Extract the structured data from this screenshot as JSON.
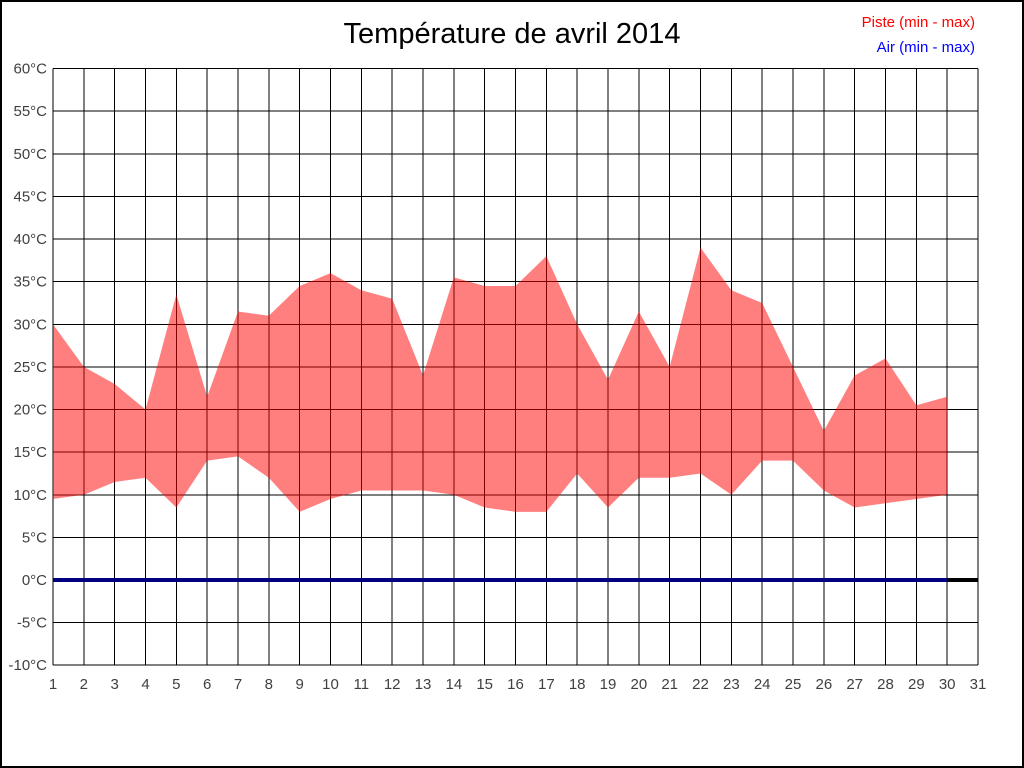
{
  "header": {
    "title": "Température de avril 2014"
  },
  "legend": {
    "piste": {
      "label": "Piste (min - max)",
      "text_color": "#ff0000"
    },
    "air": {
      "label": "Air (min - max)",
      "text_color": "#0000ff"
    }
  },
  "chart_data": {
    "type": "area",
    "title": "Température de avril 2014",
    "xlabel": "",
    "ylabel": "",
    "grid": true,
    "grid_color": "#000000",
    "axis_text_color": "#404040",
    "legend_position": "top-right",
    "ylim": [
      -10,
      60
    ],
    "ytick_values": [
      60,
      55,
      50,
      45,
      40,
      35,
      30,
      25,
      20,
      15,
      10,
      5,
      0,
      -5,
      -10
    ],
    "ytick_labels": [
      "60°C",
      "55°C",
      "50°C",
      "45°C",
      "40°C",
      "35°C",
      "30°C",
      "25°C",
      "20°C",
      "15°C",
      "10°C",
      "5°C",
      "0°C",
      "-5°C",
      "-10°C"
    ],
    "xtick_days": [
      1,
      2,
      3,
      4,
      5,
      6,
      7,
      8,
      9,
      10,
      11,
      12,
      13,
      14,
      15,
      16,
      17,
      18,
      19,
      20,
      21,
      22,
      23,
      24,
      25,
      26,
      27,
      28,
      29,
      30,
      31
    ],
    "xtick_labels": [
      "1",
      "2",
      "3",
      "4",
      "5",
      "6",
      "7",
      "8",
      "9",
      "10",
      "11",
      "12",
      "13",
      "14",
      "15",
      "16",
      "17",
      "18",
      "19",
      "20",
      "21",
      "22",
      "23",
      "24",
      "25",
      "26",
      "27",
      "28",
      "29",
      "30",
      "31"
    ],
    "series": [
      {
        "name": "Piste (min - max)",
        "kind": "band",
        "fill_color": "#ff0000",
        "fill_opacity": 0.5,
        "days": [
          1,
          2,
          3,
          4,
          5,
          6,
          7,
          8,
          9,
          10,
          11,
          12,
          13,
          14,
          15,
          16,
          17,
          18,
          19,
          20,
          21,
          22,
          23,
          24,
          25,
          26,
          27,
          28,
          29,
          30
        ],
        "max": [
          30,
          25,
          23,
          20,
          33.5,
          21.5,
          31.5,
          31,
          34.5,
          36,
          34,
          33,
          24,
          35.5,
          34.5,
          34.5,
          38,
          30,
          23.5,
          31.5,
          25,
          39,
          34,
          32.5,
          25,
          17.5,
          24,
          26,
          20.5,
          21.5
        ],
        "min": [
          9.5,
          10,
          11.5,
          12,
          8.5,
          14,
          14.5,
          12,
          8,
          9.5,
          10.5,
          10.5,
          10.5,
          10,
          8.5,
          8,
          8,
          12.5,
          8.5,
          12,
          12,
          12.5,
          10,
          14,
          14,
          10.5,
          8.5,
          9,
          9.5,
          10
        ]
      },
      {
        "name": "zero-baseline",
        "kind": "line",
        "color": "#000000",
        "width": 4,
        "days": [
          30,
          31
        ],
        "values": [
          0,
          0
        ]
      },
      {
        "name": "Air (min - max)",
        "kind": "line",
        "color": "#000080",
        "width": 4,
        "days": [
          1,
          30
        ],
        "values": [
          0,
          0
        ]
      }
    ]
  }
}
